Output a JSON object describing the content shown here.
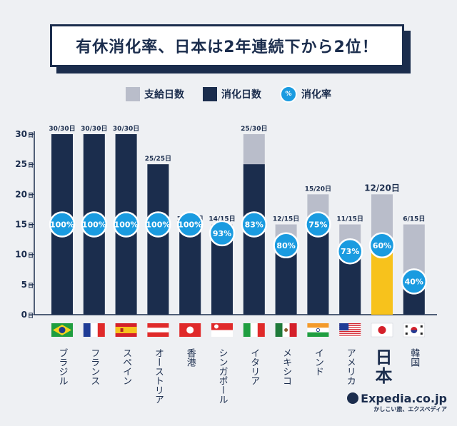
{
  "title": "有休消化率、日本は2年連続下から2位！",
  "legend": {
    "granted": "支給日数",
    "used": "消化日数",
    "rate": "消化率",
    "rate_symbol": "%"
  },
  "colors": {
    "granted": "#b9bdca",
    "used": "#1b2d4d",
    "japan_used": "#f7c21c",
    "rate": "#1a9be0",
    "text": "#1b2d4d"
  },
  "brand": {
    "name": "Expedia.co.jp",
    "tagline": "かしこい旅、エクスペディア"
  },
  "chart_data": {
    "type": "bar",
    "ylim": [
      0,
      30
    ],
    "yticks": [
      0,
      5,
      10,
      15,
      20,
      25,
      30
    ],
    "y_unit": "日",
    "categories": [
      "ブラジル",
      "フランス",
      "スペイン",
      "オーストリア",
      "香港",
      "シンガポール",
      "イタリア",
      "メキシコ",
      "インド",
      "アメリカ",
      "日本",
      "韓国"
    ],
    "flags": [
      "brazil-flag",
      "france-flag",
      "spain-flag",
      "austria-flag",
      "hongkong-flag",
      "singapore-flag",
      "italy-flag",
      "mexico-flag",
      "india-flag",
      "usa-flag",
      "japan-flag",
      "korea-flag"
    ],
    "highlight_index": 10,
    "series": [
      {
        "name": "支給日数",
        "values": [
          30,
          30,
          30,
          25,
          15,
          15,
          30,
          15,
          20,
          15,
          20,
          15
        ]
      },
      {
        "name": "消化日数",
        "values": [
          30,
          30,
          30,
          25,
          15,
          14,
          25,
          12,
          15,
          11,
          12,
          6
        ]
      },
      {
        "name": "消化率",
        "values": [
          100,
          100,
          100,
          100,
          100,
          93,
          83,
          80,
          75,
          73,
          60,
          40
        ]
      }
    ],
    "bar_labels": [
      "30/30日",
      "30/30日",
      "30/30日",
      "25/25日",
      "15/15日",
      "14/15日",
      "25/30日",
      "12/15日",
      "15/20日",
      "11/15日",
      "12/20日",
      "6/15日"
    ]
  }
}
